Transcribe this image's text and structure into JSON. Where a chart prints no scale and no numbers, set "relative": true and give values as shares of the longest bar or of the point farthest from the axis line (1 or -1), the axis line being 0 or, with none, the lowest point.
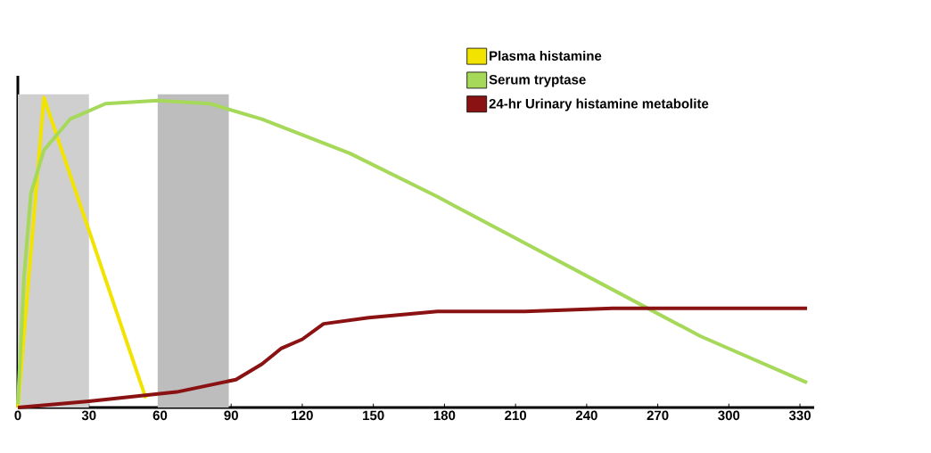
{
  "chart_data": {
    "type": "line",
    "relative": true,
    "xlim": [
      0,
      336
    ],
    "xticks": [
      0,
      30,
      60,
      90,
      120,
      150,
      180,
      210,
      240,
      270,
      300,
      330
    ],
    "tick_labels": "x",
    "legend": "top right",
    "marker": "none",
    "line_style": "solid",
    "bands": [
      {
        "axis": "x",
        "from": 0,
        "to": 30,
        "color": "#cfcfcf"
      },
      {
        "axis": "x",
        "from": 59,
        "to": 89,
        "color": "#bdbdbd"
      }
    ],
    "series": [
      {
        "name": "Plasma histamine",
        "color": "#f2e400",
        "x": [
          0,
          11,
          54
        ],
        "values": [
          0,
          1,
          0.03
        ]
      },
      {
        "name": "Serum tryptase",
        "color": "#a6d85a",
        "x": [
          0,
          2.6,
          5.5,
          11,
          22,
          37,
          59,
          81,
          103,
          140,
          177,
          214,
          251,
          288,
          333
        ],
        "values": [
          0.01,
          0.42,
          0.69,
          0.83,
          0.93,
          0.98,
          0.99,
          0.98,
          0.93,
          0.82,
          0.68,
          0.53,
          0.38,
          0.23,
          0.08
        ]
      },
      {
        "name": "24-hr Urinary histamine metabolite",
        "color": "#8b1212",
        "x": [
          0,
          30,
          67,
          92,
          103,
          111,
          120,
          129,
          148,
          177,
          214,
          251,
          333
        ],
        "values": [
          0,
          0.02,
          0.05,
          0.09,
          0.14,
          0.19,
          0.22,
          0.27,
          0.29,
          0.31,
          0.31,
          0.32,
          0.32
        ]
      }
    ]
  }
}
